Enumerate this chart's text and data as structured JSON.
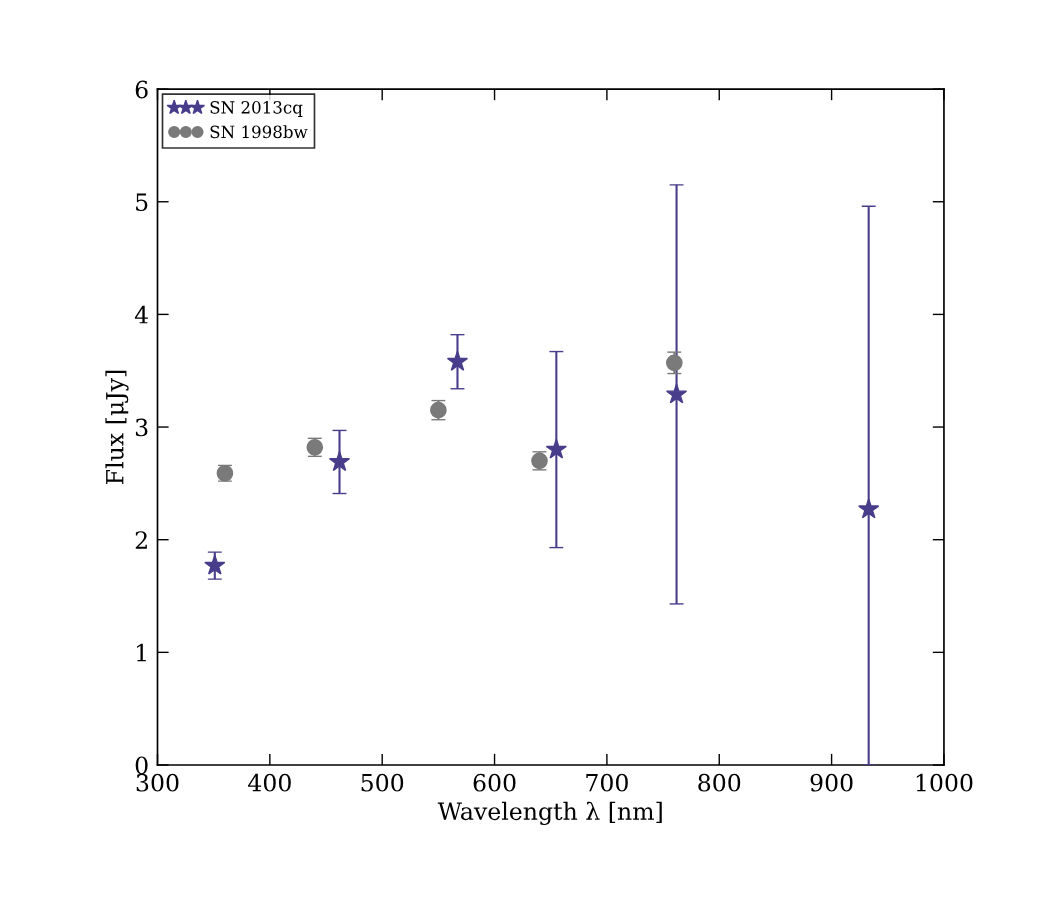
{
  "chart_data": {
    "type": "scatter",
    "xlabel": "Wavelength λ [nm]",
    "ylabel": "Flux [μJy]",
    "xlim": [
      300,
      1000
    ],
    "xticks": [
      300,
      400,
      500,
      600,
      700,
      800,
      900,
      1000
    ],
    "ylim": [
      0,
      6
    ],
    "yticks": [
      0,
      1,
      2,
      3,
      4,
      5,
      6
    ],
    "legend": "top left",
    "grid": false,
    "series": [
      {
        "name": "SN 2013cq",
        "color": "#483d8b",
        "marker": "star",
        "x": [
          351,
          462,
          567,
          655,
          762,
          933
        ],
        "values": [
          1.77,
          2.69,
          3.58,
          2.8,
          3.29,
          2.27
        ],
        "errors": [
          0.12,
          0.28,
          0.24,
          0.87,
          1.86,
          [
            0,
            4.96
          ]
        ]
      },
      {
        "name": "SN 1998bw",
        "color": "#7a7a7a",
        "marker": "circle",
        "x": [
          360,
          440,
          550,
          640,
          760
        ],
        "values": [
          2.59,
          2.82,
          3.15,
          2.7,
          3.57
        ],
        "errors": [
          0.07,
          0.08,
          0.085,
          0.08,
          0.095
        ]
      }
    ]
  }
}
